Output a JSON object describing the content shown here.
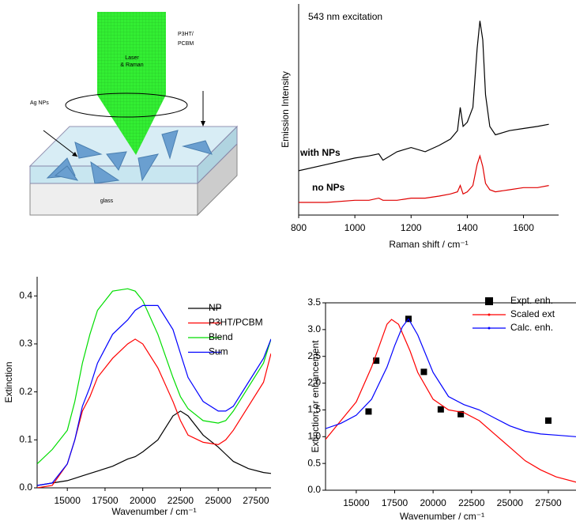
{
  "diagram": {
    "beam_label": [
      "Laser",
      "& Raman"
    ],
    "film_label": [
      "P3HT/",
      "PCBM"
    ],
    "particles_label": "Ag NPs",
    "substrate_label": "glass"
  },
  "chart_data": [
    {
      "type": "line",
      "title": "543 nm excitation",
      "x_label": "Raman shift / cm⁻¹",
      "y_label": "Emission Intensity",
      "xlim": [
        800,
        1725
      ],
      "xticks": [
        800,
        1000,
        1200,
        1400,
        1600
      ],
      "ylim": [
        0,
        100
      ],
      "x": [
        800,
        900,
        1000,
        1050,
        1085,
        1100,
        1150,
        1200,
        1250,
        1300,
        1340,
        1365,
        1375,
        1385,
        1400,
        1420,
        1435,
        1445,
        1455,
        1465,
        1480,
        1500,
        1550,
        1600,
        1650,
        1690
      ],
      "series": [
        {
          "name": "with NPs",
          "color": "#000000",
          "values": [
            21,
            24,
            27,
            28,
            29,
            26,
            30,
            32,
            30,
            33,
            36,
            40,
            51,
            42,
            44,
            51,
            79,
            92,
            83,
            57,
            42,
            38,
            40,
            41,
            42,
            43
          ]
        },
        {
          "name": "no NPs",
          "color": "#e00000",
          "values": [
            6,
            6,
            7,
            7,
            8,
            7,
            7,
            8,
            8,
            9,
            10,
            11,
            14,
            10,
            11,
            14,
            24,
            28,
            23,
            15,
            12,
            11,
            12,
            13,
            13,
            14
          ]
        }
      ]
    },
    {
      "type": "line",
      "x_label": "Wavenumber / cm⁻¹",
      "y_label": "Extinction",
      "legend": "upper right",
      "xlim": [
        13000,
        28500
      ],
      "xticks": [
        15000,
        17500,
        20000,
        22500,
        25000,
        27500
      ],
      "ylim": [
        0,
        0.44
      ],
      "yticks": [
        {
          "value": 0,
          "label": "0.0"
        },
        0.1,
        0.2,
        0.3,
        0.4
      ],
      "x": [
        13000,
        14000,
        15000,
        15500,
        16000,
        16500,
        17000,
        18000,
        19000,
        19500,
        20000,
        21000,
        22000,
        22500,
        23000,
        24000,
        25000,
        25500,
        26000,
        27000,
        28000,
        28500
      ],
      "series": [
        {
          "name": "NP",
          "color": "#000000",
          "values": [
            0.005,
            0.01,
            0.015,
            0.02,
            0.025,
            0.03,
            0.035,
            0.045,
            0.06,
            0.065,
            0.075,
            0.1,
            0.15,
            0.16,
            0.15,
            0.11,
            0.085,
            0.07,
            0.055,
            0.04,
            0.032,
            0.03
          ]
        },
        {
          "name": "P3HT/PCBM",
          "color": "#ff0000",
          "values": [
            0.0,
            0.005,
            0.05,
            0.1,
            0.16,
            0.19,
            0.23,
            0.27,
            0.3,
            0.31,
            0.3,
            0.25,
            0.18,
            0.14,
            0.11,
            0.095,
            0.09,
            0.1,
            0.12,
            0.17,
            0.22,
            0.28
          ]
        },
        {
          "name": "Blend",
          "color": "#00dd00",
          "values": [
            0.05,
            0.08,
            0.12,
            0.18,
            0.26,
            0.32,
            0.37,
            0.41,
            0.415,
            0.41,
            0.39,
            0.32,
            0.23,
            0.19,
            0.165,
            0.14,
            0.135,
            0.14,
            0.16,
            0.21,
            0.26,
            0.31
          ]
        },
        {
          "name": "Sum",
          "color": "#0000ff",
          "values": [
            0.005,
            0.01,
            0.05,
            0.1,
            0.17,
            0.21,
            0.26,
            0.32,
            0.35,
            0.37,
            0.38,
            0.38,
            0.33,
            0.28,
            0.23,
            0.18,
            0.16,
            0.16,
            0.17,
            0.22,
            0.27,
            0.31
          ]
        }
      ]
    },
    {
      "type": "scatter",
      "x_label": "Wavenumber / cm⁻¹",
      "y_label": "Extinction or enhancement",
      "legend": "upper right",
      "xlim": [
        13000,
        29300
      ],
      "xticks": [
        15000,
        17500,
        20000,
        22500,
        25000,
        27500
      ],
      "ylim": [
        0,
        3.5
      ],
      "yticks": [
        {
          "value": 0,
          "label": "0.0"
        },
        0.5,
        {
          "value": 1,
          "label": "1.0"
        },
        1.5,
        {
          "value": 2,
          "label": "2.0"
        },
        2.5,
        {
          "value": 3,
          "label": "3.0"
        },
        3.5
      ],
      "series": [
        {
          "name": "Expt. enh.",
          "type": "scatter",
          "color": "#000000",
          "x": [
            15800,
            16300,
            18400,
            19400,
            20500,
            21800,
            27500
          ],
          "values": [
            1.47,
            2.42,
            3.2,
            2.21,
            1.51,
            1.42,
            1.3
          ]
        },
        {
          "name": "Scaled ext",
          "type": "line",
          "color": "#ff0000",
          "x": [
            13000,
            14000,
            15000,
            16000,
            16500,
            17000,
            17300,
            17750,
            18500,
            19000,
            20000,
            21000,
            22000,
            23000,
            24000,
            25000,
            26000,
            27000,
            28000,
            29300
          ],
          "values": [
            0.95,
            1.3,
            1.65,
            2.3,
            2.7,
            3.1,
            3.19,
            3.1,
            2.6,
            2.2,
            1.7,
            1.5,
            1.45,
            1.3,
            1.05,
            0.8,
            0.55,
            0.38,
            0.25,
            0.15
          ]
        },
        {
          "name": "Calc. enh.",
          "type": "line",
          "color": "#0000ff",
          "x": [
            13000,
            14000,
            15000,
            16000,
            17000,
            17500,
            18000,
            18400,
            19000,
            20000,
            21000,
            22000,
            23000,
            24000,
            25000,
            26000,
            27000,
            28000,
            29300
          ],
          "values": [
            1.15,
            1.25,
            1.4,
            1.7,
            2.3,
            2.7,
            3.05,
            3.2,
            2.9,
            2.2,
            1.75,
            1.6,
            1.5,
            1.35,
            1.2,
            1.1,
            1.05,
            1.03,
            1.0
          ]
        }
      ]
    }
  ]
}
